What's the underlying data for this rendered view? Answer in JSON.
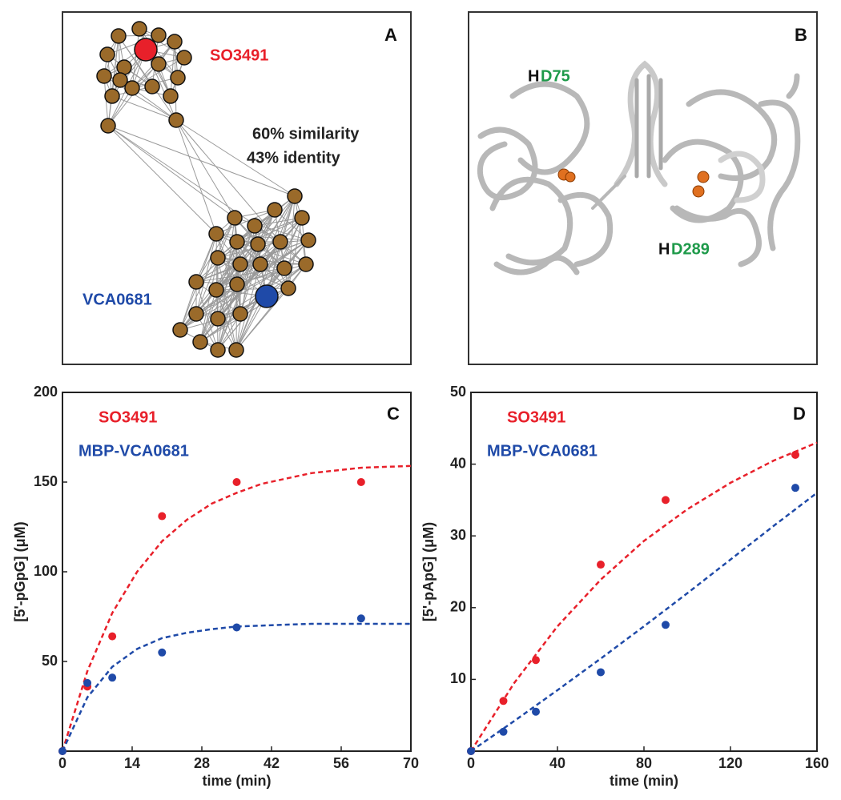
{
  "network": {
    "panel_label": "A",
    "node_labels": [
      "SO3491",
      "VCA0681"
    ],
    "annotations": [
      "60% similarity",
      "43% identity"
    ]
  },
  "structure": {
    "panel_label": "B",
    "sites": [
      {
        "prefix": "H",
        "residue": "D75"
      },
      {
        "prefix": "H",
        "residue": "D289"
      }
    ]
  },
  "chart_data": [
    {
      "type": "scatter",
      "panel_label": "C",
      "xlabel": "time (min)",
      "ylabel": "[5'-pGpG] (μM)",
      "xlim": [
        0,
        70
      ],
      "xticks": [
        0,
        14,
        28,
        42,
        56,
        70
      ],
      "ylim": [
        0,
        200
      ],
      "yticks": [
        50,
        100,
        150,
        200
      ],
      "grid": false,
      "x": [
        0,
        5,
        10,
        20,
        35,
        60
      ],
      "fit_x": [
        0,
        5,
        10,
        15,
        20,
        25,
        30,
        35,
        40,
        50,
        60,
        70
      ],
      "series": [
        {
          "name": "SO3491",
          "color": "#e8202a",
          "values": [
            0,
            36,
            64,
            131,
            150,
            150
          ],
          "fit": [
            0,
            44.6,
            77,
            100,
            117,
            129,
            138,
            144,
            149,
            155,
            158,
            159
          ]
        },
        {
          "name": "MBP-VCA0681",
          "color": "#1f4aa8",
          "values": [
            0,
            38,
            41,
            55,
            69,
            74
          ],
          "fit": [
            0,
            30,
            47,
            57,
            63,
            66,
            68,
            69.5,
            70,
            71,
            71,
            71
          ]
        }
      ]
    },
    {
      "type": "scatter",
      "panel_label": "D",
      "xlabel": "time (min)",
      "ylabel": "[5'-pApG] (μM)",
      "xlim": [
        0,
        160
      ],
      "xticks": [
        0,
        40,
        80,
        120,
        160
      ],
      "ylim": [
        0,
        50
      ],
      "yticks": [
        10,
        20,
        30,
        40,
        50
      ],
      "grid": false,
      "x": [
        0,
        15,
        30,
        60,
        90,
        150
      ],
      "fit_x": [
        0,
        20,
        40,
        60,
        80,
        100,
        120,
        140,
        160
      ],
      "series": [
        {
          "name": "SO3491",
          "color": "#e8202a",
          "values": [
            0,
            7,
            12.7,
            26,
            35,
            41.3
          ],
          "fit": [
            0,
            9.5,
            17.4,
            23.9,
            29.3,
            33.7,
            37.4,
            40.5,
            43
          ]
        },
        {
          "name": "MBP-VCA0681",
          "color": "#1f4aa8",
          "values": [
            0,
            2.7,
            5.5,
            11,
            17.6,
            36.7
          ],
          "fit": [
            0,
            4.2,
            8.5,
            12.9,
            17.4,
            22,
            26.7,
            31.4,
            36
          ]
        }
      ]
    }
  ]
}
